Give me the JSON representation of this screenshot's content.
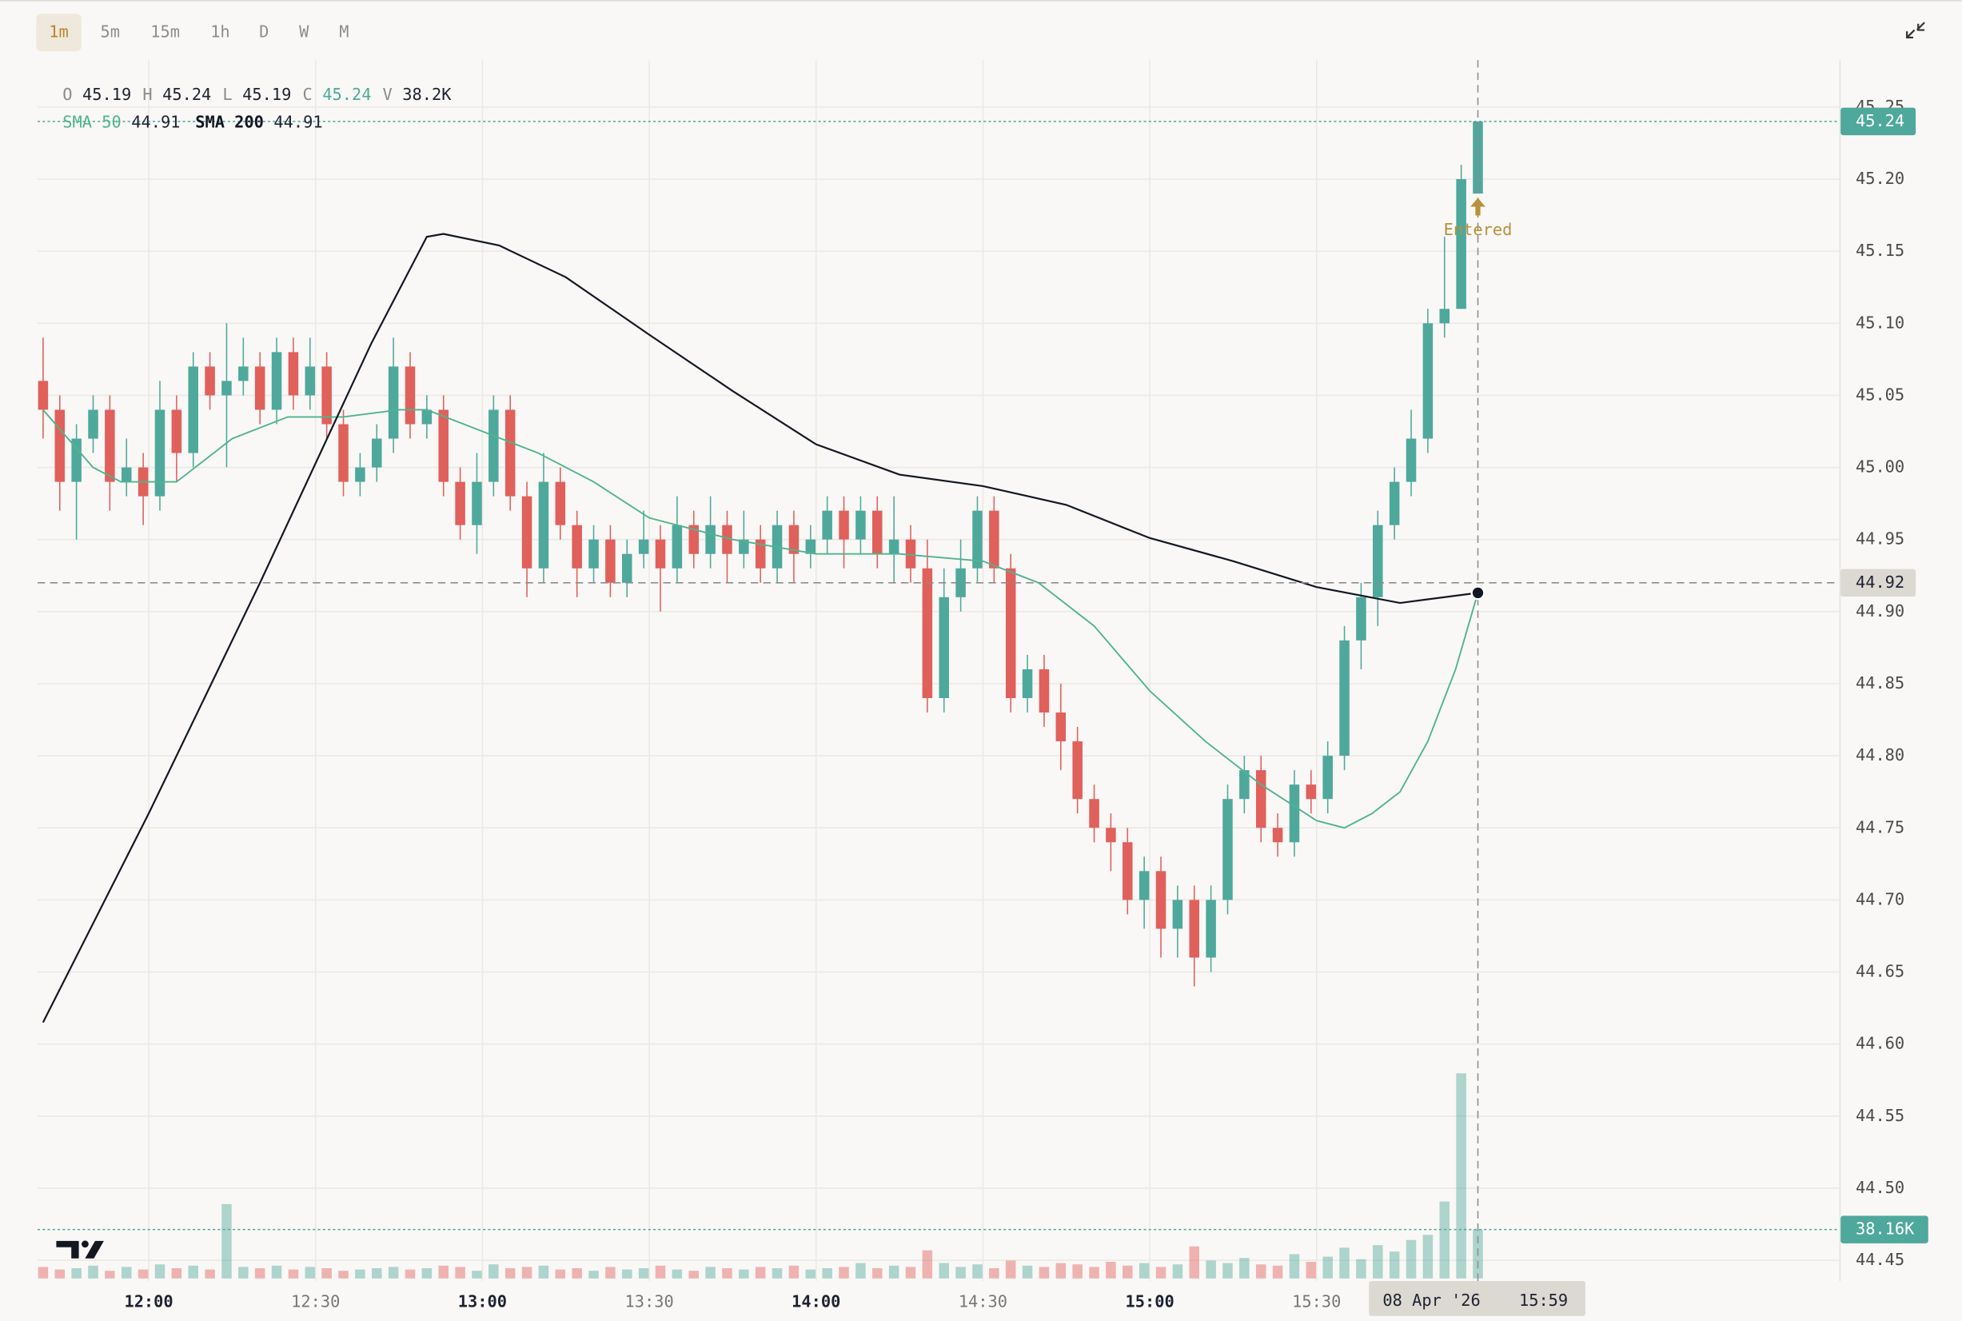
{
  "chart_data": {
    "type": "candlestick",
    "timeframes": [
      "1m",
      "5m",
      "15m",
      "1h",
      "D",
      "W",
      "M"
    ],
    "active_timeframe": "1m",
    "legend": [
      {
        "key": "O",
        "value": 45.19
      },
      {
        "key": "H",
        "value": 45.24
      },
      {
        "key": "L",
        "value": 45.19
      },
      {
        "key": "C",
        "value": 45.24
      },
      {
        "key": "V",
        "value": "38.2K"
      }
    ],
    "colors": {
      "up": "#4fa89c",
      "down": "#e0605c"
    },
    "x": [
      "11:41",
      "11:44",
      "11:47",
      "11:50",
      "11:53",
      "11:56",
      "11:59",
      "12:02",
      "12:05",
      "12:08",
      "12:11",
      "12:14",
      "12:17",
      "12:20",
      "12:23",
      "12:26",
      "12:29",
      "12:32",
      "12:35",
      "12:38",
      "12:41",
      "12:44",
      "12:47",
      "12:50",
      "12:53",
      "12:56",
      "12:59",
      "13:02",
      "13:05",
      "13:08",
      "13:11",
      "13:14",
      "13:17",
      "13:20",
      "13:23",
      "13:26",
      "13:29",
      "13:32",
      "13:35",
      "13:38",
      "13:41",
      "13:44",
      "13:47",
      "13:50",
      "13:53",
      "13:56",
      "13:59",
      "14:02",
      "14:05",
      "14:08",
      "14:11",
      "14:14",
      "14:17",
      "14:20",
      "14:23",
      "14:26",
      "14:29",
      "14:32",
      "14:35",
      "14:38",
      "14:41",
      "14:44",
      "14:47",
      "14:50",
      "14:53",
      "14:56",
      "14:59",
      "15:02",
      "15:05",
      "15:08",
      "15:11",
      "15:14",
      "15:17",
      "15:20",
      "15:23",
      "15:26",
      "15:29",
      "15:32",
      "15:35",
      "15:38",
      "15:41",
      "15:44",
      "15:47",
      "15:50",
      "15:53",
      "15:56",
      "15:59"
    ],
    "open": [
      45.06,
      45.04,
      44.99,
      45.02,
      45.04,
      44.99,
      45.0,
      44.98,
      45.04,
      45.01,
      45.07,
      45.05,
      45.06,
      45.07,
      45.04,
      45.08,
      45.05,
      45.07,
      45.03,
      44.99,
      45.0,
      45.02,
      45.07,
      45.03,
      45.04,
      44.99,
      44.96,
      44.99,
      45.04,
      44.98,
      44.93,
      44.99,
      44.96,
      44.93,
      44.95,
      44.92,
      44.94,
      44.95,
      44.93,
      44.96,
      44.94,
      44.96,
      44.94,
      44.95,
      44.93,
      44.96,
      44.94,
      44.95,
      44.97,
      44.95,
      44.97,
      44.94,
      44.95,
      44.93,
      44.84,
      44.91,
      44.93,
      44.97,
      44.93,
      44.84,
      44.86,
      44.83,
      44.81,
      44.77,
      44.75,
      44.74,
      44.7,
      44.72,
      44.68,
      44.7,
      44.66,
      44.7,
      44.77,
      44.79,
      44.75,
      44.74,
      44.78,
      44.77,
      44.8,
      44.88,
      44.91,
      44.96,
      44.99,
      45.02,
      45.1,
      45.11,
      45.19
    ],
    "high": [
      45.09,
      45.05,
      45.03,
      45.05,
      45.05,
      45.02,
      45.01,
      45.06,
      45.05,
      45.08,
      45.08,
      45.1,
      45.09,
      45.08,
      45.09,
      45.09,
      45.09,
      45.08,
      45.04,
      45.01,
      45.03,
      45.09,
      45.08,
      45.05,
      45.05,
      45.0,
      45.01,
      45.05,
      45.05,
      44.99,
      45.01,
      45.0,
      44.97,
      44.96,
      44.96,
      44.95,
      44.97,
      44.96,
      44.98,
      44.97,
      44.98,
      44.97,
      44.97,
      44.96,
      44.97,
      44.97,
      44.96,
      44.98,
      44.98,
      44.98,
      44.98,
      44.98,
      44.96,
      44.95,
      44.93,
      44.95,
      44.98,
      44.98,
      44.94,
      44.87,
      44.87,
      44.85,
      44.82,
      44.78,
      44.76,
      44.75,
      44.73,
      44.73,
      44.71,
      44.71,
      44.71,
      44.78,
      44.8,
      44.8,
      44.76,
      44.79,
      44.79,
      44.81,
      44.89,
      44.92,
      44.97,
      45.0,
      45.04,
      45.11,
      45.16,
      45.21,
      45.24
    ],
    "low": [
      45.02,
      44.97,
      44.95,
      45.01,
      44.97,
      44.98,
      44.96,
      44.97,
      44.99,
      45.0,
      45.04,
      45.0,
      45.05,
      45.03,
      45.03,
      45.04,
      45.04,
      45.02,
      44.98,
      44.98,
      44.99,
      45.01,
      45.02,
      45.02,
      44.98,
      44.95,
      44.94,
      44.98,
      44.97,
      44.91,
      44.92,
      44.95,
      44.91,
      44.92,
      44.91,
      44.91,
      44.93,
      44.9,
      44.92,
      44.93,
      44.93,
      44.92,
      44.93,
      44.92,
      44.92,
      44.92,
      44.93,
      44.94,
      44.93,
      44.94,
      44.93,
      44.92,
      44.92,
      44.83,
      44.83,
      44.9,
      44.92,
      44.92,
      44.83,
      44.83,
      44.82,
      44.79,
      44.76,
      44.74,
      44.72,
      44.69,
      44.68,
      44.66,
      44.66,
      44.64,
      44.65,
      44.69,
      44.76,
      44.74,
      44.73,
      44.73,
      44.76,
      44.76,
      44.79,
      44.86,
      44.89,
      44.95,
      44.98,
      45.01,
      45.09,
      45.11,
      45.19
    ],
    "close": [
      45.04,
      44.99,
      45.02,
      45.04,
      44.99,
      45.0,
      44.98,
      45.04,
      45.01,
      45.07,
      45.05,
      45.06,
      45.07,
      45.04,
      45.08,
      45.05,
      45.07,
      45.03,
      44.99,
      45.0,
      45.02,
      45.07,
      45.03,
      45.04,
      44.99,
      44.96,
      44.99,
      45.04,
      44.98,
      44.93,
      44.99,
      44.96,
      44.93,
      44.95,
      44.92,
      44.94,
      44.95,
      44.93,
      44.96,
      44.94,
      44.96,
      44.94,
      44.95,
      44.93,
      44.96,
      44.94,
      44.95,
      44.97,
      44.95,
      44.97,
      44.94,
      44.95,
      44.93,
      44.84,
      44.91,
      44.93,
      44.97,
      44.93,
      44.84,
      44.86,
      44.83,
      44.81,
      44.77,
      44.75,
      44.74,
      44.7,
      44.72,
      44.68,
      44.7,
      44.66,
      44.7,
      44.77,
      44.79,
      44.75,
      44.74,
      44.78,
      44.77,
      44.8,
      44.88,
      44.91,
      44.96,
      44.99,
      45.02,
      45.1,
      45.11,
      45.2,
      45.24
    ],
    "volume": [
      9000,
      7000,
      8000,
      10000,
      6000,
      9000,
      7000,
      11000,
      8000,
      10000,
      7000,
      58000,
      9000,
      8000,
      10000,
      7000,
      9000,
      8000,
      6000,
      7000,
      8000,
      9000,
      7000,
      8000,
      10000,
      9000,
      6000,
      11000,
      8000,
      9000,
      10000,
      7000,
      8000,
      6000,
      9000,
      7000,
      8000,
      10000,
      7000,
      6000,
      9000,
      8000,
      7000,
      9000,
      8000,
      10000,
      7000,
      8000,
      9000,
      12000,
      8000,
      10000,
      9000,
      22000,
      12000,
      9000,
      11000,
      8000,
      14000,
      10000,
      9000,
      12000,
      11000,
      9000,
      13000,
      10000,
      12000,
      9000,
      11000,
      25000,
      14000,
      12000,
      16000,
      11000,
      10000,
      19000,
      13000,
      17000,
      24000,
      15000,
      26000,
      21000,
      30000,
      34000,
      60000,
      160000,
      38160
    ],
    "vlim": [
      0,
      160000
    ],
    "volume_label": {
      "value": 38160,
      "label": "38.16K"
    },
    "sma": [
      {
        "name": "SMA 50",
        "color": "#4fb48f",
        "legend_value": 44.91,
        "x": [
          "11:41",
          "11:50",
          "11:55",
          "12:05",
          "12:15",
          "12:25",
          "12:35",
          "12:45",
          "12:50",
          "13:00",
          "13:10",
          "13:20",
          "13:30",
          "13:45",
          "14:00",
          "14:15",
          "14:30",
          "14:40",
          "14:50",
          "15:00",
          "15:10",
          "15:20",
          "15:30",
          "15:35",
          "15:40",
          "15:45",
          "15:50",
          "15:55",
          "15:59"
        ],
        "values": [
          45.04,
          45.0,
          44.99,
          44.99,
          45.02,
          45.035,
          45.035,
          45.04,
          45.04,
          45.025,
          45.01,
          44.99,
          44.965,
          44.95,
          44.94,
          44.94,
          44.935,
          44.92,
          44.89,
          44.845,
          44.81,
          44.78,
          44.755,
          44.75,
          44.76,
          44.775,
          44.81,
          44.86,
          44.913
        ]
      },
      {
        "name": "SMA 200",
        "color": "#131722",
        "legend_value": 44.91,
        "x": [
          "11:41",
          "12:00",
          "12:20",
          "12:40",
          "12:50",
          "12:53",
          "13:03",
          "13:15",
          "13:30",
          "13:45",
          "14:00",
          "14:15",
          "14:30",
          "14:45",
          "15:00",
          "15:15",
          "15:30",
          "15:45",
          "15:59"
        ],
        "values": [
          44.615,
          44.76,
          44.92,
          45.086,
          45.16,
          45.162,
          45.154,
          45.132,
          45.092,
          45.053,
          45.016,
          44.995,
          44.987,
          44.974,
          44.951,
          44.935,
          44.917,
          44.906,
          44.913
        ]
      }
    ],
    "last_price": 45.24,
    "crosshair": {
      "price": 44.92,
      "date": "08 Apr '26",
      "time": "15:59"
    },
    "annotations": [
      {
        "text": "Entered",
        "x": "15:59",
        "price": 45.18
      }
    ],
    "xlim": [
      "11:40",
      "17:04"
    ],
    "xticks": [
      "12:00",
      "12:30",
      "13:00",
      "13:30",
      "14:00",
      "14:30",
      "15:00",
      "15:30"
    ],
    "ylim": [
      44.44,
      45.28
    ],
    "yticks": [
      44.45,
      {
        "value": 44.5,
        "label": "44.50"
      },
      44.55,
      {
        "value": 44.6,
        "label": "44.60"
      },
      44.65,
      {
        "value": 44.7,
        "label": "44.70"
      },
      44.75,
      {
        "value": 44.8,
        "label": "44.80"
      },
      44.85,
      {
        "value": 44.9,
        "label": "44.90"
      },
      44.95,
      {
        "value": 45,
        "label": "45.00"
      },
      45.05,
      {
        "value": 45.1,
        "label": "45.10"
      },
      45.15,
      {
        "value": 45.2,
        "label": "45.20"
      },
      45.25
    ],
    "grid": true
  }
}
